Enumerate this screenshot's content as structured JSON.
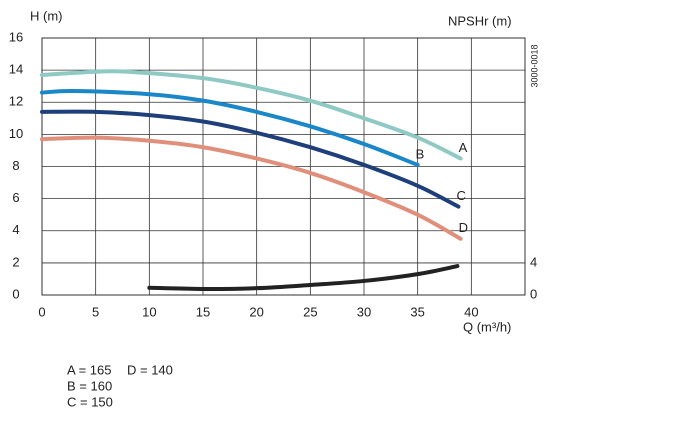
{
  "chart_data": {
    "type": "line",
    "y_label": "H (m)",
    "y2_label": "NPSHr (m)",
    "x_label": "Q (m³/h)",
    "code": "3000-0018",
    "xlim": [
      0,
      45
    ],
    "xticks": [
      0,
      5,
      10,
      15,
      20,
      25,
      30,
      35,
      40
    ],
    "ylim": [
      0,
      16
    ],
    "yticks": [
      0,
      2,
      4,
      6,
      8,
      10,
      12,
      14,
      16
    ],
    "y2lim": [
      0,
      32
    ],
    "y2ticks": [
      0,
      4
    ],
    "grid": true,
    "series": [
      {
        "name": "A",
        "color": "#8ec9c3",
        "x": [
          0,
          5,
          8,
          15,
          20,
          25,
          30,
          35,
          39
        ],
        "values": [
          13.7,
          13.9,
          13.9,
          13.5,
          12.9,
          12.1,
          11.0,
          9.8,
          8.5
        ]
      },
      {
        "name": "B",
        "color": "#1a87c9",
        "x": [
          0,
          3,
          10,
          15,
          20,
          25,
          30,
          35
        ],
        "values": [
          12.6,
          12.7,
          12.5,
          12.1,
          11.4,
          10.5,
          9.4,
          8.1
        ]
      },
      {
        "name": "C",
        "color": "#1f3f7a",
        "x": [
          0,
          5,
          10,
          15,
          20,
          25,
          30,
          35,
          38.8
        ],
        "values": [
          11.4,
          11.4,
          11.2,
          10.8,
          10.1,
          9.2,
          8.1,
          6.8,
          5.5
        ]
      },
      {
        "name": "D",
        "color": "#e0907a",
        "x": [
          0,
          5,
          10,
          15,
          20,
          25,
          30,
          35,
          39
        ],
        "values": [
          9.7,
          9.8,
          9.6,
          9.2,
          8.5,
          7.6,
          6.4,
          5.0,
          3.5
        ]
      },
      {
        "axis": "y2",
        "color": "#222222",
        "x": [
          10,
          15,
          20,
          25,
          30,
          35,
          38.7
        ],
        "values": [
          0.9,
          0.75,
          0.85,
          1.25,
          1.75,
          2.6,
          3.6
        ]
      }
    ],
    "notes": [
      "A = 165",
      "B = 160",
      "C = 150",
      "D = 140"
    ]
  }
}
